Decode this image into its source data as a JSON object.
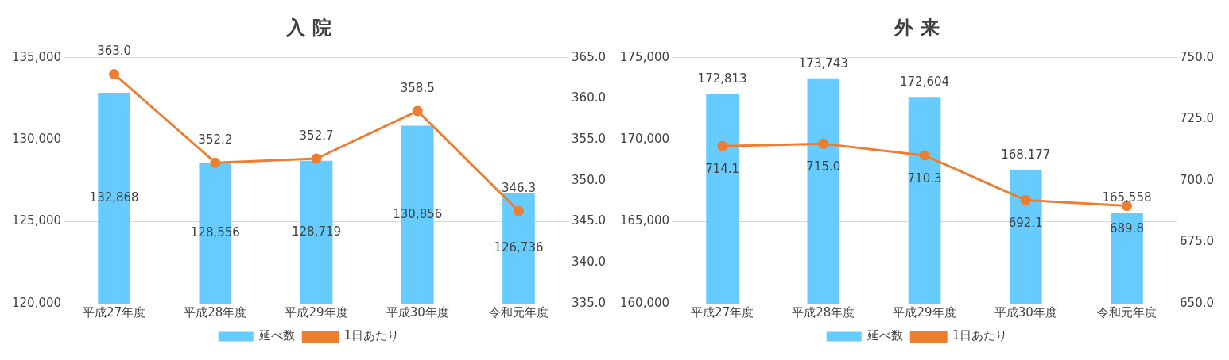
{
  "chart_data": [
    {
      "type": "bar",
      "title": "入 院",
      "categories": [
        "平成27年度",
        "平成28年度",
        "平成29年度",
        "平成30年度",
        "令和元年度"
      ],
      "series": [
        {
          "name": "延べ数",
          "color": "#66ccff",
          "values": [
            132868,
            128556,
            128719,
            130856,
            126736
          ],
          "value_labels": [
            "132,868",
            "128,556",
            "128,719",
            "130,856",
            "126,736"
          ]
        },
        {
          "name": "1日あたり",
          "type": "line",
          "axis": "y2",
          "color": "#ed7d31",
          "values": [
            363.0,
            352.2,
            352.7,
            358.5,
            346.3
          ],
          "value_labels": [
            "363.0",
            "352.2",
            "352.7",
            "358.5",
            "346.3"
          ]
        }
      ],
      "ylim": [
        120000,
        135000
      ],
      "yticks": [
        {
          "value": 120000,
          "label": "120,000"
        },
        {
          "value": 125000,
          "label": "125,000"
        },
        {
          "value": 130000,
          "label": "130,000"
        },
        {
          "value": 135000,
          "label": "135,000"
        }
      ],
      "y2lim": [
        335,
        365
      ],
      "y2ticks": [
        {
          "value": 335,
          "label": "335.0"
        },
        {
          "value": 340,
          "label": "340.0"
        },
        {
          "value": 345,
          "label": "345.0"
        },
        {
          "value": 350,
          "label": "350.0"
        },
        {
          "value": 355,
          "label": "355.0"
        },
        {
          "value": 360,
          "label": "360.0"
        },
        {
          "value": 365,
          "label": "365.0"
        }
      ],
      "grid": "y",
      "legend": "bottom",
      "marker": "circle"
    },
    {
      "type": "bar",
      "title": "外 来",
      "categories": [
        "平成27年度",
        "平成28年度",
        "平成29年度",
        "平成30年度",
        "令和元年度"
      ],
      "series": [
        {
          "name": "延べ数",
          "color": "#66ccff",
          "values": [
            172813,
            173743,
            172604,
            168177,
            165558
          ],
          "value_labels": [
            "172,813",
            "173,743",
            "172,604",
            "168,177",
            "165,558"
          ]
        },
        {
          "name": "1日あたり",
          "type": "line",
          "axis": "y2",
          "color": "#ed7d31",
          "values": [
            714.1,
            715.0,
            710.3,
            692.1,
            689.8
          ],
          "value_labels": [
            "714.1",
            "715.0",
            "710.3",
            "692.1",
            "689.8"
          ]
        }
      ],
      "ylim": [
        160000,
        175000
      ],
      "yticks": [
        {
          "value": 160000,
          "label": "160,000"
        },
        {
          "value": 165000,
          "label": "165,000"
        },
        {
          "value": 170000,
          "label": "170,000"
        },
        {
          "value": 175000,
          "label": "175,000"
        }
      ],
      "y2lim": [
        650,
        750
      ],
      "y2ticks": [
        {
          "value": 650,
          "label": "650.0"
        },
        {
          "value": 675,
          "label": "675.0"
        },
        {
          "value": 700,
          "label": "700.0"
        },
        {
          "value": 725,
          "label": "725.0"
        },
        {
          "value": 750,
          "label": "750.0"
        }
      ],
      "grid": "y",
      "legend": "bottom",
      "marker": "circle"
    }
  ]
}
